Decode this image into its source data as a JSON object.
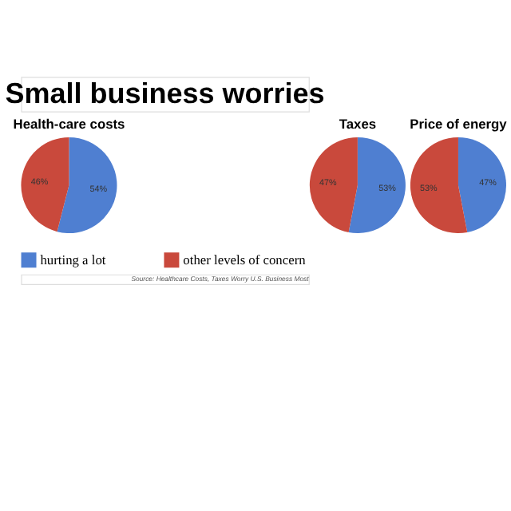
{
  "chart_data": [
    {
      "type": "other",
      "title": "Small business worries",
      "annotations": [
        "Source: Healthcare Costs, Taxes Worry U.S. Business Most"
      ]
    },
    {
      "type": "pie",
      "title": "Health-care costs",
      "categories": [
        "hurting a lot",
        "other levels of concern"
      ],
      "values": [
        54,
        46
      ],
      "colors": [
        "#4f7fd1",
        "#c9493c"
      ],
      "value_labels": [
        "54%",
        "46%"
      ],
      "legend": "bottom"
    },
    {
      "type": "pie",
      "title": "Taxes",
      "categories": [
        null,
        null
      ],
      "values": [
        53,
        47
      ],
      "colors": [
        "#4f7fd1",
        "#c9493c"
      ],
      "value_labels": [
        "53%",
        "47%"
      ]
    },
    {
      "type": "pie",
      "title": "Price of energy",
      "categories": [
        null,
        null
      ],
      "values": [
        47,
        53
      ],
      "colors": [
        "#4f7fd1",
        "#c9493c"
      ],
      "value_labels": [
        "47%",
        "53%"
      ]
    }
  ]
}
